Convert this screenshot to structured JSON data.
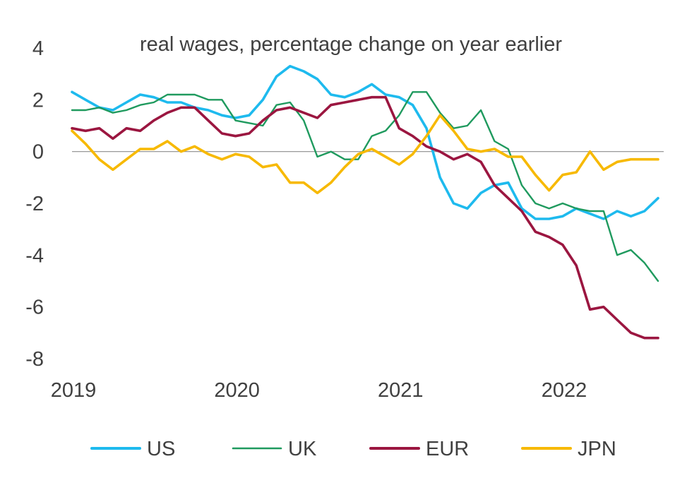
{
  "chart_data": {
    "type": "line",
    "title": "real wages, percentage change on year earlier",
    "xlabel": "",
    "ylabel": "",
    "xlim": [
      2019,
      2022.583
    ],
    "ylim": [
      -8,
      4
    ],
    "yticks": [
      4,
      2,
      0,
      -2,
      -4,
      -6,
      -8
    ],
    "ytick_labels": [
      "4",
      "2",
      "0",
      "-2",
      "-4",
      "-6",
      "-8"
    ],
    "xticks": [
      2019,
      2020,
      2021,
      2022
    ],
    "xtick_labels": [
      "2019",
      "2020",
      "2021",
      "2022"
    ],
    "zero_line": true,
    "grid": false,
    "legend_position": "bottom",
    "series": [
      {
        "name": "US",
        "color": "#1ebaee",
        "x": [
          2019.0,
          2019.083,
          2019.167,
          2019.25,
          2019.333,
          2019.417,
          2019.5,
          2019.583,
          2019.667,
          2019.75,
          2019.833,
          2019.917,
          2020.0,
          2020.083,
          2020.167,
          2020.25,
          2020.333,
          2020.417,
          2020.5,
          2020.583,
          2020.667,
          2020.75,
          2020.833,
          2020.917,
          2021.0,
          2021.083,
          2021.167,
          2021.25,
          2021.333,
          2021.417,
          2021.5,
          2021.583,
          2021.667,
          2021.75,
          2021.833,
          2021.917,
          2022.0,
          2022.083,
          2022.167,
          2022.25,
          2022.333,
          2022.417,
          2022.5,
          2022.583
        ],
        "values": [
          2.3,
          2.0,
          1.7,
          1.6,
          1.9,
          2.2,
          2.1,
          1.9,
          1.9,
          1.7,
          1.6,
          1.4,
          1.3,
          1.4,
          2.0,
          2.9,
          3.3,
          3.1,
          2.8,
          2.2,
          2.1,
          2.3,
          2.6,
          2.2,
          2.1,
          1.8,
          0.9,
          -1.0,
          -2.0,
          -2.2,
          -1.6,
          -1.3,
          -1.2,
          -2.2,
          -2.6,
          -2.6,
          -2.5,
          -2.2,
          -2.4,
          -2.6,
          -2.3,
          -2.5,
          -2.3,
          -1.8
        ]
      },
      {
        "name": "UK",
        "color": "#1f9a5e",
        "x": [
          2019.0,
          2019.083,
          2019.167,
          2019.25,
          2019.333,
          2019.417,
          2019.5,
          2019.583,
          2019.667,
          2019.75,
          2019.833,
          2019.917,
          2020.0,
          2020.083,
          2020.167,
          2020.25,
          2020.333,
          2020.417,
          2020.5,
          2020.583,
          2020.667,
          2020.75,
          2020.833,
          2020.917,
          2021.0,
          2021.083,
          2021.167,
          2021.25,
          2021.333,
          2021.417,
          2021.5,
          2021.583,
          2021.667,
          2021.75,
          2021.833,
          2021.917,
          2022.0,
          2022.083,
          2022.167,
          2022.25,
          2022.333,
          2022.417,
          2022.5,
          2022.583
        ],
        "values": [
          1.6,
          1.6,
          1.7,
          1.5,
          1.6,
          1.8,
          1.9,
          2.2,
          2.2,
          2.2,
          2.0,
          2.0,
          1.2,
          1.1,
          1.0,
          1.8,
          1.9,
          1.2,
          -0.2,
          0.0,
          -0.3,
          -0.3,
          0.6,
          0.8,
          1.4,
          2.3,
          2.3,
          1.5,
          0.9,
          1.0,
          1.6,
          0.4,
          0.1,
          -1.3,
          -2.0,
          -2.2,
          -2.0,
          -2.2,
          -2.3,
          -2.3,
          -4.0,
          -3.8,
          -4.3,
          -5.0
        ]
      },
      {
        "name": "EUR",
        "color": "#9b1640",
        "x": [
          2019.0,
          2019.083,
          2019.167,
          2019.25,
          2019.333,
          2019.417,
          2019.5,
          2019.583,
          2019.667,
          2019.75,
          2019.833,
          2019.917,
          2020.0,
          2020.083,
          2020.167,
          2020.25,
          2020.333,
          2020.417,
          2020.5,
          2020.583,
          2020.667,
          2020.75,
          2020.833,
          2020.917,
          2021.0,
          2021.083,
          2021.167,
          2021.25,
          2021.333,
          2021.417,
          2021.5,
          2021.583,
          2021.667,
          2021.75,
          2021.833,
          2021.917,
          2022.0,
          2022.083,
          2022.167,
          2022.25,
          2022.333,
          2022.417,
          2022.5,
          2022.583
        ],
        "values": [
          0.9,
          0.8,
          0.9,
          0.5,
          0.9,
          0.8,
          1.2,
          1.5,
          1.7,
          1.7,
          1.2,
          0.7,
          0.6,
          0.7,
          1.2,
          1.6,
          1.7,
          1.5,
          1.3,
          1.8,
          1.9,
          2.0,
          2.1,
          2.1,
          0.9,
          0.6,
          0.2,
          0.0,
          -0.3,
          -0.1,
          -0.4,
          -1.3,
          -1.8,
          -2.3,
          -3.1,
          -3.3,
          -3.6,
          -4.4,
          -6.1,
          -6.0,
          -6.5,
          -7.0,
          -7.2,
          -7.2
        ]
      },
      {
        "name": "JPN",
        "color": "#f7b900",
        "x": [
          2019.0,
          2019.083,
          2019.167,
          2019.25,
          2019.333,
          2019.417,
          2019.5,
          2019.583,
          2019.667,
          2019.75,
          2019.833,
          2019.917,
          2020.0,
          2020.083,
          2020.167,
          2020.25,
          2020.333,
          2020.417,
          2020.5,
          2020.583,
          2020.667,
          2020.75,
          2020.833,
          2020.917,
          2021.0,
          2021.083,
          2021.167,
          2021.25,
          2021.333,
          2021.417,
          2021.5,
          2021.583,
          2021.667,
          2021.75,
          2021.833,
          2021.917,
          2022.0,
          2022.083,
          2022.167,
          2022.25,
          2022.333,
          2022.417,
          2022.5,
          2022.583
        ],
        "values": [
          0.8,
          0.3,
          -0.3,
          -0.7,
          -0.3,
          0.1,
          0.1,
          0.4,
          0.0,
          0.2,
          -0.1,
          -0.3,
          -0.1,
          -0.2,
          -0.6,
          -0.5,
          -1.2,
          -1.2,
          -1.6,
          -1.2,
          -0.6,
          -0.1,
          0.1,
          -0.2,
          -0.5,
          -0.1,
          0.6,
          1.4,
          0.8,
          0.1,
          0.0,
          0.1,
          -0.2,
          -0.2,
          -0.9,
          -1.5,
          -0.9,
          -0.8,
          0.0,
          -0.7,
          -0.4,
          -0.3,
          -0.3,
          -0.3
        ]
      }
    ]
  }
}
